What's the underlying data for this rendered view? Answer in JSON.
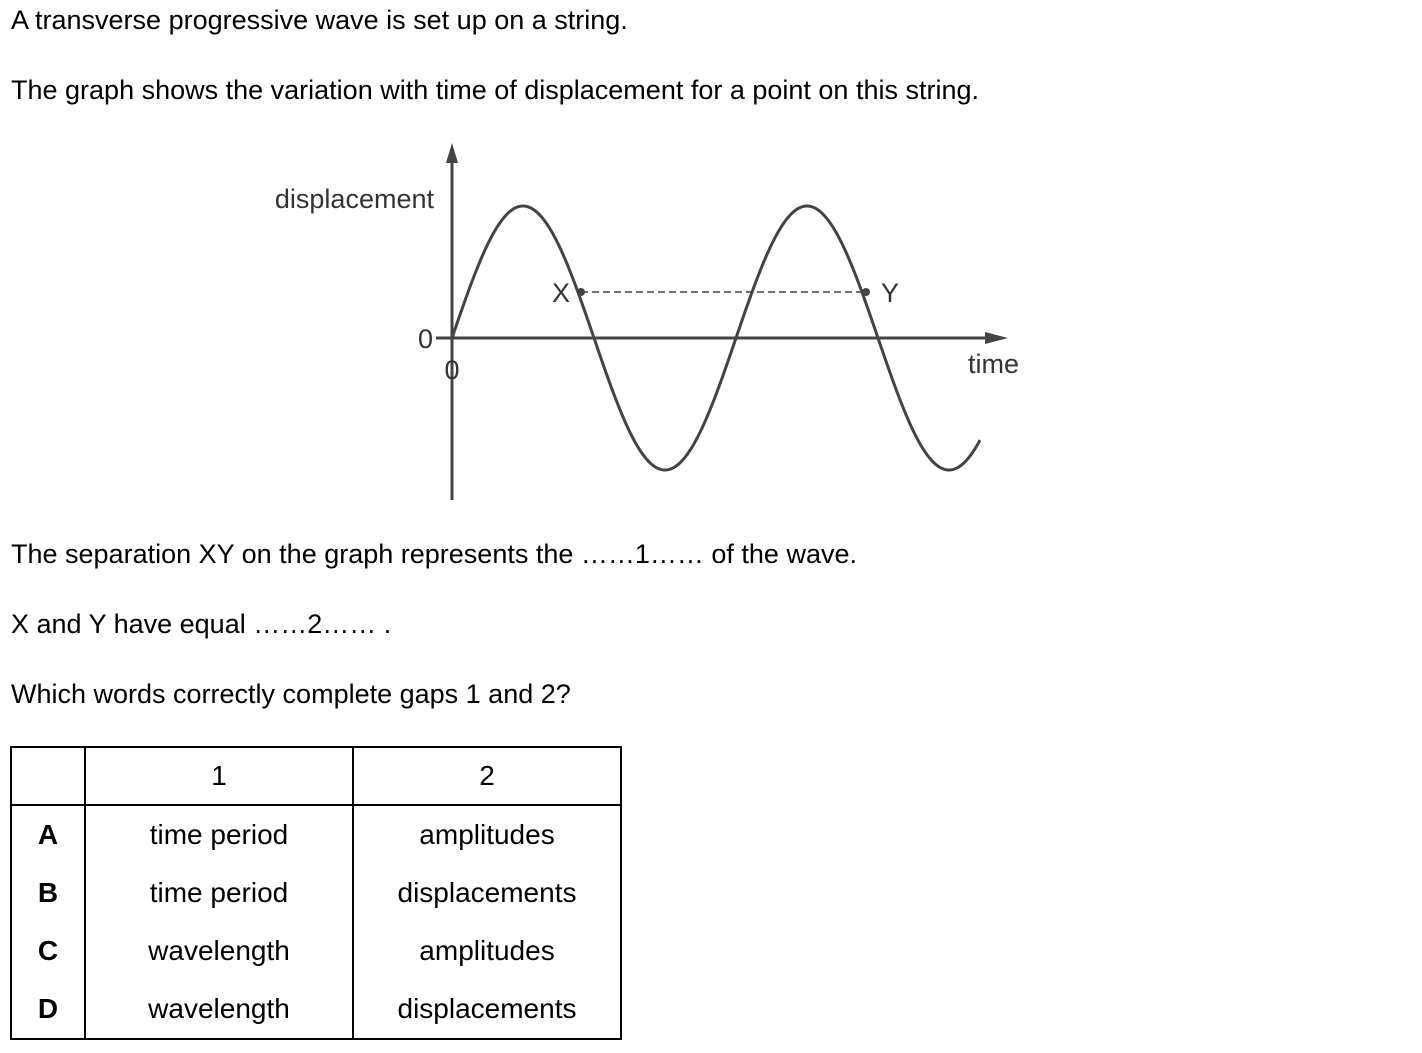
{
  "question": {
    "intro": "A transverse progressive wave is set up on a string.",
    "graph_intro": "The graph shows the variation with time of displacement for a point on this string.",
    "statement_1": "The separation XY on the graph represents the ……1…… of the wave.",
    "statement_2": "X and Y have equal ……2…… .",
    "prompt": "Which words correctly complete gaps 1 and 2?"
  },
  "graph": {
    "y_label": "displacement",
    "x_label": "time",
    "y_origin_label": "0",
    "x_origin_label": "0",
    "point_x_label": "X",
    "point_y_label": "Y"
  },
  "table": {
    "headers": [
      "",
      "1",
      "2"
    ],
    "rows": [
      {
        "letter": "A",
        "col1": "time period",
        "col2": "amplitudes"
      },
      {
        "letter": "B",
        "col1": "time period",
        "col2": "displacements"
      },
      {
        "letter": "C",
        "col1": "wavelength",
        "col2": "amplitudes"
      },
      {
        "letter": "D",
        "col1": "wavelength",
        "col2": "displacements"
      }
    ]
  }
}
